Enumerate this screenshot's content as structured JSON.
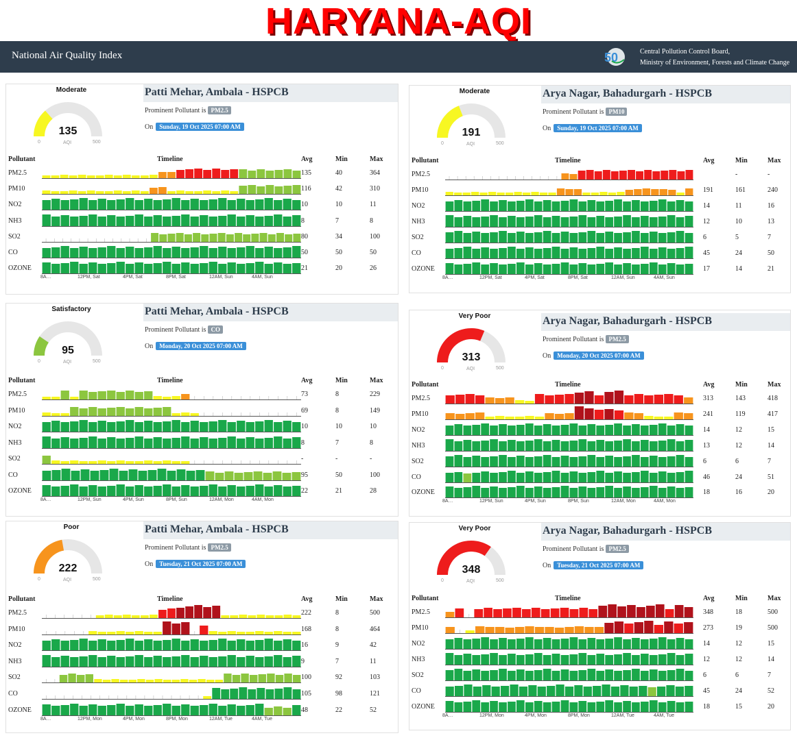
{
  "banner": "HARYANA-AQI",
  "header": {
    "title": "National Air Quality Index",
    "logo_icon": "cpcb-50-logo-icon",
    "org_line1": "Central Pollution Control Board,",
    "org_line2": "Ministry of Environment, Forests and Climate Change"
  },
  "gauge_scale": {
    "min": "0",
    "max": "500",
    "unit": "AQI"
  },
  "labels": {
    "prominent": "Prominent Pollutant is",
    "on": "On",
    "pollutant": "Pollutant",
    "timeline": "Timeline",
    "avg": "Avg",
    "min": "Min",
    "max": "Max"
  },
  "colors": {
    "good": "#1aa84a",
    "satisfactory": "#8cc63f",
    "moderate": "#f7f722",
    "poor": "#f7941d",
    "very_poor": "#ee1c1c",
    "severe": "#b0121b",
    "gauge_bg": "#e6e6e6"
  },
  "panels": [
    {
      "station": "Patti Mehar, Ambala - HSPCB",
      "category": "Moderate",
      "aqi": "135",
      "aqi_fraction": 0.27,
      "gauge_color": "#f7f722",
      "prominent": "PM2.5",
      "date": "Sunday, 19 Oct 2025 07:00 AM",
      "xlabels": [
        "8A…",
        "12PM, Sat",
        "4PM, Sat",
        "8PM, Sat",
        "12AM, Sun",
        "4AM, Sun"
      ],
      "rows": [
        {
          "name": "PM2.5",
          "avg": "135",
          "min": "40",
          "max": "364",
          "bars": "22222222222223344444441111111"
        },
        {
          "name": "PM10",
          "avg": "116",
          "min": "42",
          "max": "310",
          "bars": "22222222222233222222221111111"
        },
        {
          "name": "NO2",
          "avg": "10",
          "min": "10",
          "max": "11",
          "bars": "0000000000000000000000000000"
        },
        {
          "name": "NH3",
          "avg": "8",
          "min": "7",
          "max": "8",
          "bars": "0000000000000000000000000000"
        },
        {
          "name": "SO2",
          "avg": "80",
          "min": "34",
          "max": "100",
          "bars": "-------------111111111111111111"
        },
        {
          "name": "CO",
          "avg": "50",
          "min": "50",
          "max": "50",
          "bars": "0000000000000000000000000000"
        },
        {
          "name": "OZONE",
          "avg": "21",
          "min": "20",
          "max": "26",
          "bars": "0000000000000000000000000000"
        }
      ]
    },
    {
      "station": "Arya Nagar, Bahadurgarh - HSPCB",
      "category": "Moderate",
      "aqi": "191",
      "aqi_fraction": 0.382,
      "gauge_color": "#f7f722",
      "prominent": "PM10",
      "date": "Sunday, 19 Oct 2025 07:00 AM",
      "xlabels": [
        "8A…",
        "12PM, Sat",
        "4PM, Sat",
        "8PM, Sat",
        "12AM, Sun",
        "4AM, Sun"
      ],
      "rows": [
        {
          "name": "PM2.5",
          "avg": "",
          "min": "-",
          "max": "-",
          "bars": "--------------3344444444444444"
        },
        {
          "name": "PM10",
          "avg": "191",
          "min": "161",
          "max": "240",
          "bars": "22222222222223332222233333323"
        },
        {
          "name": "NO2",
          "avg": "14",
          "min": "11",
          "max": "16",
          "bars": "0000000000000000000000000000"
        },
        {
          "name": "NH3",
          "avg": "12",
          "min": "10",
          "max": "13",
          "bars": "0000000000000000000000000000"
        },
        {
          "name": "SO2",
          "avg": "6",
          "min": "5",
          "max": "7",
          "bars": "0000000000000000000000000000"
        },
        {
          "name": "CO",
          "avg": "45",
          "min": "24",
          "max": "50",
          "bars": "0000000000000000000000000000"
        },
        {
          "name": "OZONE",
          "avg": "17",
          "min": "14",
          "max": "21",
          "bars": "0000000000000000000000000000"
        }
      ]
    },
    {
      "station": "Patti Mehar, Ambala - HSPCB",
      "category": "Satisfactory",
      "aqi": "95",
      "aqi_fraction": 0.19,
      "gauge_color": "#8cc63f",
      "prominent": "CO",
      "date": "Monday, 20 Oct 2025 07:00 AM",
      "xlabels": [
        "8A…",
        "12PM, Sun",
        "4PM, Sun",
        "8PM, Sun",
        "12AM, Mon",
        "4AM, Mon"
      ],
      "rows": [
        {
          "name": "PM2.5",
          "avg": "73",
          "min": "8",
          "max": "229",
          "bars": "2212111111112223------------"
        },
        {
          "name": "PM10",
          "avg": "69",
          "min": "8",
          "max": "149",
          "bars": "22211111111111222-----------"
        },
        {
          "name": "NO2",
          "avg": "10",
          "min": "10",
          "max": "10",
          "bars": "0000000000000000000000000000"
        },
        {
          "name": "NH3",
          "avg": "8",
          "min": "7",
          "max": "8",
          "bars": "0000000000000000000000000000"
        },
        {
          "name": "SO2",
          "avg": "-",
          "min": "-",
          "max": "-",
          "bars": "1222222222222222------------"
        },
        {
          "name": "CO",
          "avg": "95",
          "min": "50",
          "max": "100",
          "bars": "000000000000000001111111111"
        },
        {
          "name": "OZONE",
          "avg": "22",
          "min": "21",
          "max": "28",
          "bars": "0000000000000000000000000000"
        }
      ]
    },
    {
      "station": "Arya Nagar, Bahadurgarh - HSPCB",
      "category": "Very Poor",
      "aqi": "313",
      "aqi_fraction": 0.626,
      "gauge_color": "#ee1c1c",
      "prominent": "PM2.5",
      "date": "Monday, 20 Oct 2025 07:00 AM",
      "xlabels": [
        "8A…",
        "12PM, Sun",
        "4PM, Sun",
        "8PM, Sun",
        "12AM, Mon",
        "4AM, Mon"
      ],
      "rows": [
        {
          "name": "PM2.5",
          "avg": "313",
          "min": "143",
          "max": "418",
          "bars": "4444333224444554554444443"
        },
        {
          "name": "PM10",
          "avg": "241",
          "min": "119",
          "max": "417",
          "bars": "3333222222333554543322233"
        },
        {
          "name": "NO2",
          "avg": "14",
          "min": "12",
          "max": "15",
          "bars": "0000000000000000000000000000"
        },
        {
          "name": "NH3",
          "avg": "13",
          "min": "12",
          "max": "14",
          "bars": "0000000000000000000000000000"
        },
        {
          "name": "SO2",
          "avg": "6",
          "min": "6",
          "max": "7",
          "bars": "0000000000000000000000000000"
        },
        {
          "name": "CO",
          "avg": "46",
          "min": "24",
          "max": "51",
          "bars": "0010000000000000000000000000"
        },
        {
          "name": "OZONE",
          "avg": "18",
          "min": "16",
          "max": "20",
          "bars": "0000000000000000000000000000"
        }
      ]
    },
    {
      "station": "Patti Mehar, Ambala - HSPCB",
      "category": "Poor",
      "aqi": "222",
      "aqi_fraction": 0.444,
      "gauge_color": "#f7941d",
      "prominent": "PM2.5",
      "date": "Tuesday, 21 Oct 2025 07:00 AM",
      "xlabels": [
        "8A…",
        "12PM, Mon",
        "4PM, Mon",
        "8PM, Mon",
        "12AM, Tue",
        "4AM, Tue"
      ],
      "rows": [
        {
          "name": "PM2.5",
          "avg": "222",
          "min": "8",
          "max": "500",
          "bars": "------22222224455555222222222"
        },
        {
          "name": "PM10",
          "avg": "168",
          "min": "8",
          "max": "464",
          "bars": "-----22222222555-42222222222"
        },
        {
          "name": "NO2",
          "avg": "16",
          "min": "9",
          "max": "42",
          "bars": "0000000000000000000000000000"
        },
        {
          "name": "NH3",
          "avg": "9",
          "min": "7",
          "max": "11",
          "bars": "0000000000000000000000000000"
        },
        {
          "name": "SO2",
          "avg": "100",
          "min": "92",
          "max": "103",
          "bars": "--1111222222222222222111111111"
        },
        {
          "name": "CO",
          "avg": "105",
          "min": "98",
          "max": "121",
          "bars": "------------------20000000000"
        },
        {
          "name": "OZONE",
          "avg": "48",
          "min": "22",
          "max": "52",
          "bars": "0000000000000000000000001110"
        }
      ]
    },
    {
      "station": "Arya Nagar, Bahadurgarh - HSPCB",
      "category": "Very Poor",
      "aqi": "348",
      "aqi_fraction": 0.696,
      "gauge_color": "#ee1c1c",
      "prominent": "PM2.5",
      "date": "Tuesday, 21 Oct 2025 07:00 AM",
      "xlabels": [
        "8A…",
        "12PM, Mon",
        "4PM, Mon",
        "8PM, Mon",
        "12AM, Tue",
        "4AM, Tue"
      ],
      "rows": [
        {
          "name": "PM2.5",
          "avg": "348",
          "min": "18",
          "max": "500",
          "bars": "34-44444444444445555555455"
        },
        {
          "name": "PM10",
          "avg": "273",
          "min": "19",
          "max": "500",
          "bars": "3-23333333333333554554545"
        },
        {
          "name": "NO2",
          "avg": "14",
          "min": "12",
          "max": "15",
          "bars": "0000000000000000000000000000"
        },
        {
          "name": "NH3",
          "avg": "12",
          "min": "12",
          "max": "14",
          "bars": "0000000000000000000000000000"
        },
        {
          "name": "SO2",
          "avg": "6",
          "min": "6",
          "max": "7",
          "bars": "0000000000000000000000000000"
        },
        {
          "name": "CO",
          "avg": "45",
          "min": "24",
          "max": "52",
          "bars": "000000000000000000000010000"
        },
        {
          "name": "OZONE",
          "avg": "18",
          "min": "15",
          "max": "20",
          "bars": "0000000000000000000000000000"
        }
      ]
    }
  ]
}
